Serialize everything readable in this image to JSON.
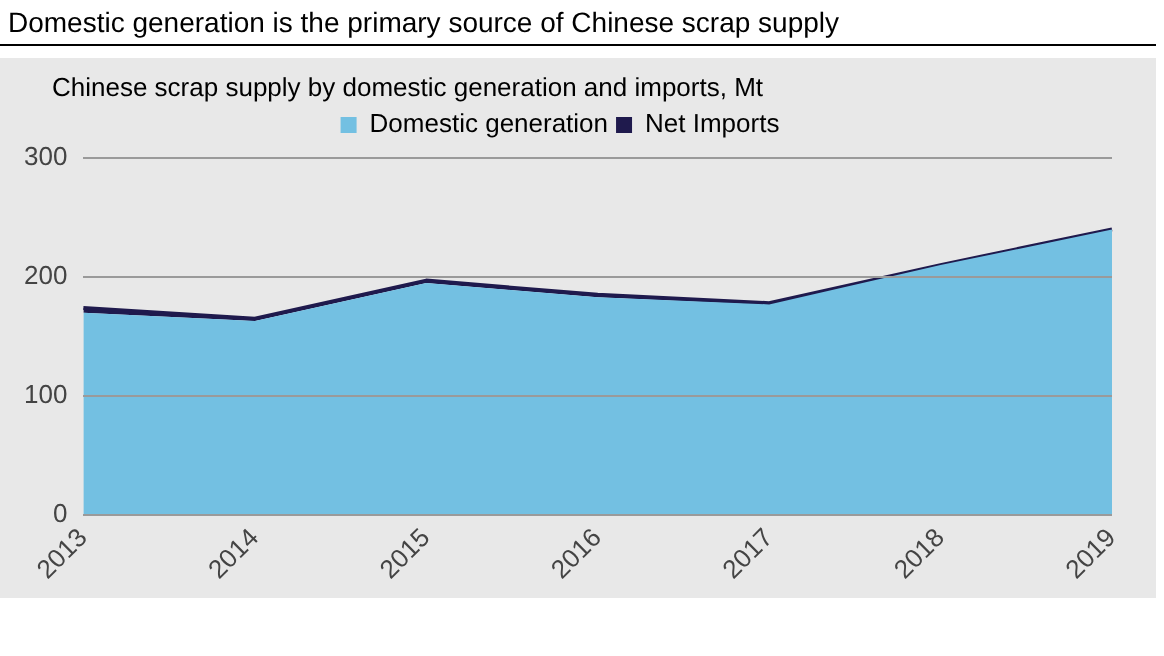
{
  "chart_data": {
    "type": "area",
    "title": "Domestic generation is the primary source of Chinese scrap supply",
    "subtitle": "Chinese scrap supply by domestic generation and imports, Mt",
    "categories": [
      "2013",
      "2014",
      "2015",
      "2016",
      "2017",
      "2018",
      "2019"
    ],
    "stacked": true,
    "series": [
      {
        "name": "Domestic generation",
        "color": "#73c0e2",
        "values": [
          170,
          163,
          195,
          183,
          177,
          210,
          240
        ]
      },
      {
        "name": "Net Imports",
        "color": "#1f1a4d",
        "values": [
          4,
          2,
          2,
          2,
          1,
          0,
          0
        ]
      }
    ],
    "ylim": [
      0,
      300
    ],
    "yticks": [
      0,
      100,
      200,
      300
    ],
    "grid": "y",
    "legend": "top"
  }
}
